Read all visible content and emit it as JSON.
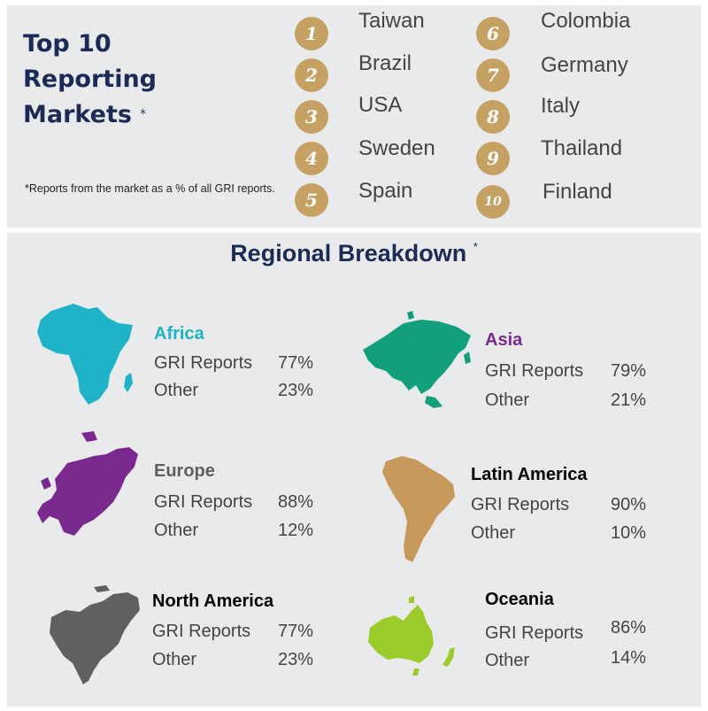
{
  "top": {
    "title_line1": "Top 10",
    "title_line2": "Reporting",
    "title_line3": "Markets",
    "title_star": "*",
    "footnote": "*Reports from the market as a % of all GRI reports.",
    "medal_color": "#c5a263",
    "markets": [
      {
        "rank": "1",
        "country": "Taiwan"
      },
      {
        "rank": "2",
        "country": "Brazil"
      },
      {
        "rank": "3",
        "country": "USA"
      },
      {
        "rank": "4",
        "country": "Sweden"
      },
      {
        "rank": "5",
        "country": "Spain"
      },
      {
        "rank": "6",
        "country": "Colombia"
      },
      {
        "rank": "7",
        "country": "Germany"
      },
      {
        "rank": "8",
        "country": "Italy"
      },
      {
        "rank": "9",
        "country": "Thailand"
      },
      {
        "rank": "10",
        "country": "Finland"
      }
    ]
  },
  "regional": {
    "title": "Regional Breakdown",
    "title_star": "*",
    "gri_label": "GRI Reports",
    "other_label": "Other",
    "regions": [
      {
        "name": "Africa",
        "color": "#1fb3c9",
        "gri": "77%",
        "other": "23%"
      },
      {
        "name": "Asia",
        "color": "#12a07c",
        "gri": "79%",
        "other": "21%"
      },
      {
        "name": "Europe",
        "color": "#7a2a8e",
        "gri": "88%",
        "other": "12%"
      },
      {
        "name": "Latin America",
        "color": "#c79a5b",
        "gri": "90%",
        "other": "10%"
      },
      {
        "name": "North America",
        "color": "#5f6062",
        "gri": "77%",
        "other": "23%"
      },
      {
        "name": "Oceania",
        "color": "#9ccb2c",
        "gri": "86%",
        "other": "14%"
      }
    ]
  }
}
